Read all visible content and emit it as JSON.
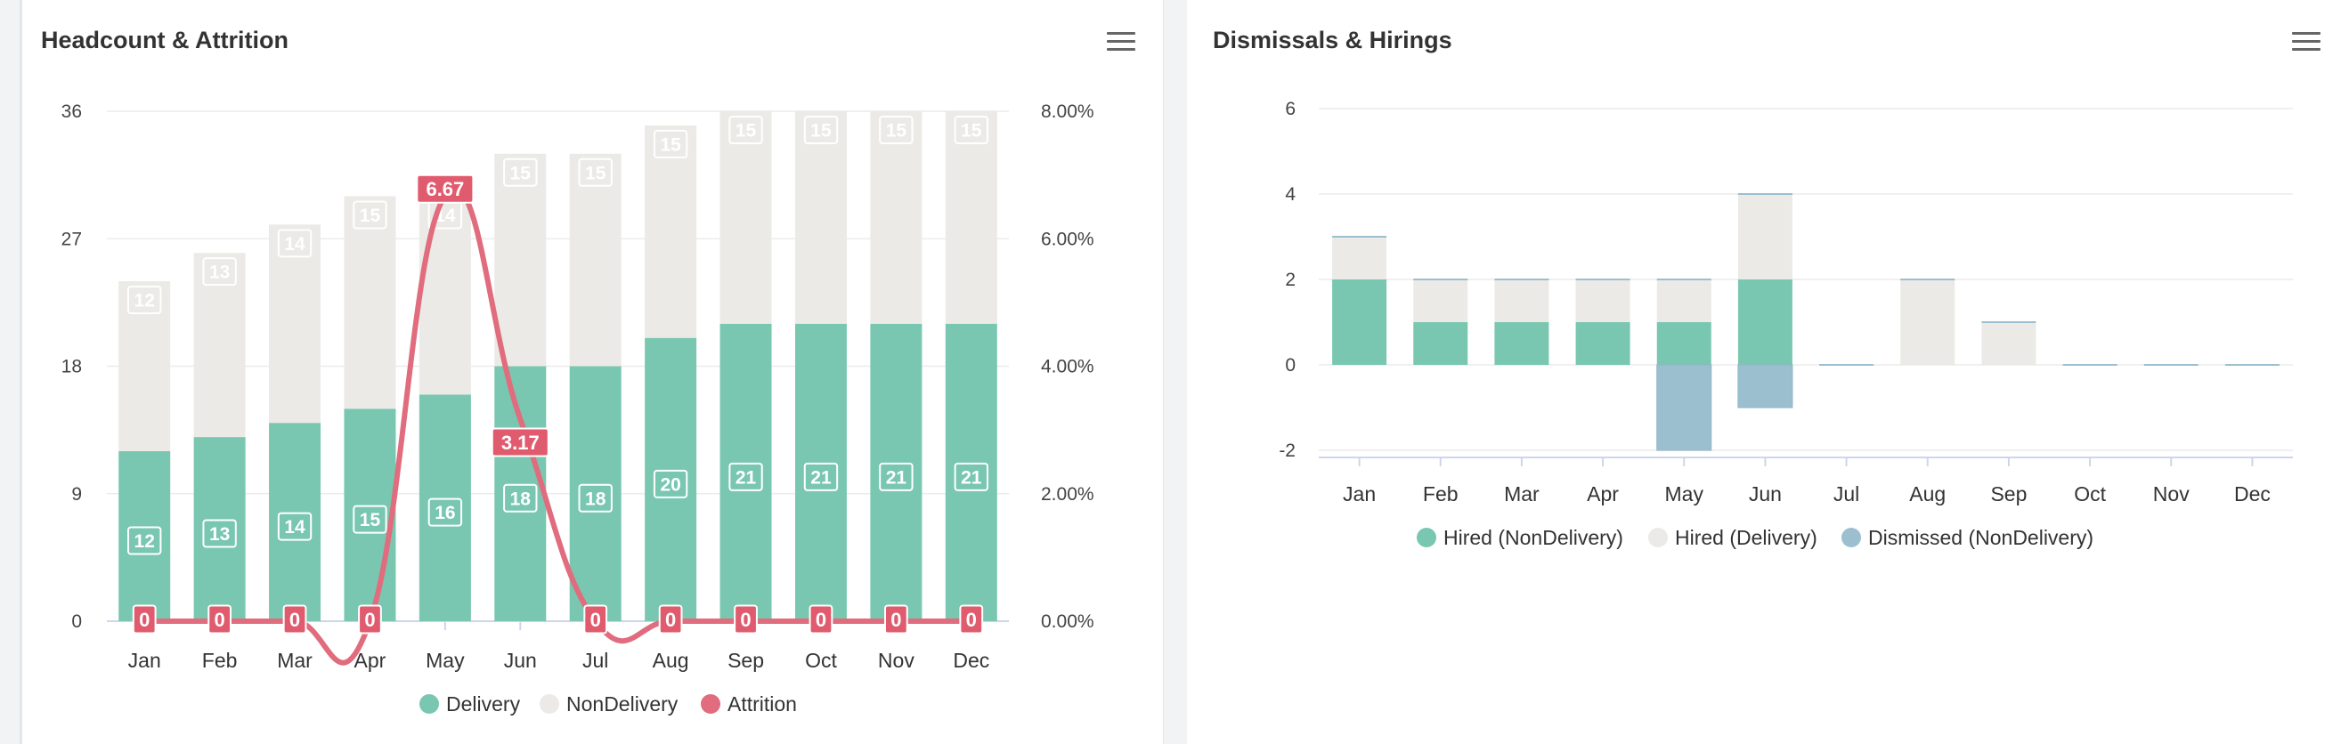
{
  "charts": {
    "left": {
      "title": "Headcount & Attrition",
      "menu_icon": "hamburger-menu-icon"
    },
    "right": {
      "title": "Dismissals & Hirings",
      "menu_icon": "hamburger-menu-icon"
    }
  },
  "colors": {
    "teal": "#79c7b0",
    "beige": "#ebeae6",
    "red": "#e06c7e",
    "redLabel": "#e05b6e",
    "blue": "#9cbfd0"
  },
  "chart_data": [
    {
      "type": "bar",
      "title": "Headcount & Attrition",
      "stacked": true,
      "categories": [
        "Jan",
        "Feb",
        "Mar",
        "Apr",
        "May",
        "Jun",
        "Jul",
        "Aug",
        "Sep",
        "Oct",
        "Nov",
        "Dec"
      ],
      "series": [
        {
          "name": "Delivery",
          "type": "bar",
          "values": [
            12,
            13,
            14,
            15,
            16,
            18,
            18,
            20,
            21,
            21,
            21,
            21
          ]
        },
        {
          "name": "NonDelivery",
          "type": "bar",
          "values": [
            12,
            13,
            14,
            15,
            14,
            15,
            15,
            15,
            15,
            15,
            15,
            15
          ]
        },
        {
          "name": "Attrition",
          "type": "line",
          "axis": "right",
          "values": [
            0,
            0,
            0,
            0,
            6.67,
            3.17,
            0,
            0,
            0,
            0,
            0,
            0
          ]
        }
      ],
      "yAxisLeft": {
        "min": 0,
        "max": 36,
        "ticks": [
          "0",
          "9",
          "18",
          "27",
          "36"
        ]
      },
      "yAxisRight": {
        "min": 0,
        "max": 8,
        "ticks": [
          "0.00%",
          "2.00%",
          "4.00%",
          "6.00%",
          "8.00%"
        ]
      },
      "legend": {
        "position": "bottom-center"
      },
      "grid": true
    },
    {
      "type": "bar",
      "title": "Dismissals & Hirings",
      "stacked": true,
      "categories": [
        "Jan",
        "Feb",
        "Mar",
        "Apr",
        "May",
        "Jun",
        "Jul",
        "Aug",
        "Sep",
        "Oct",
        "Nov",
        "Dec"
      ],
      "series": [
        {
          "name": "Hired (NonDelivery)",
          "values": [
            2,
            1,
            1,
            1,
            1,
            2,
            0,
            0,
            0,
            0,
            0,
            0
          ]
        },
        {
          "name": "Hired (Delivery)",
          "values": [
            1,
            1,
            1,
            1,
            1,
            2,
            0,
            2,
            1,
            0,
            0,
            0
          ]
        },
        {
          "name": "Dismissed (NonDelivery)",
          "values": [
            0,
            0,
            0,
            0,
            -2,
            -1,
            0,
            0,
            0,
            0,
            0,
            0
          ]
        }
      ],
      "yAxis": {
        "min": -2,
        "max": 6,
        "ticks": [
          "-2",
          "0",
          "2",
          "4",
          "6"
        ]
      },
      "legend": {
        "position": "bottom-center"
      },
      "grid": true
    }
  ]
}
